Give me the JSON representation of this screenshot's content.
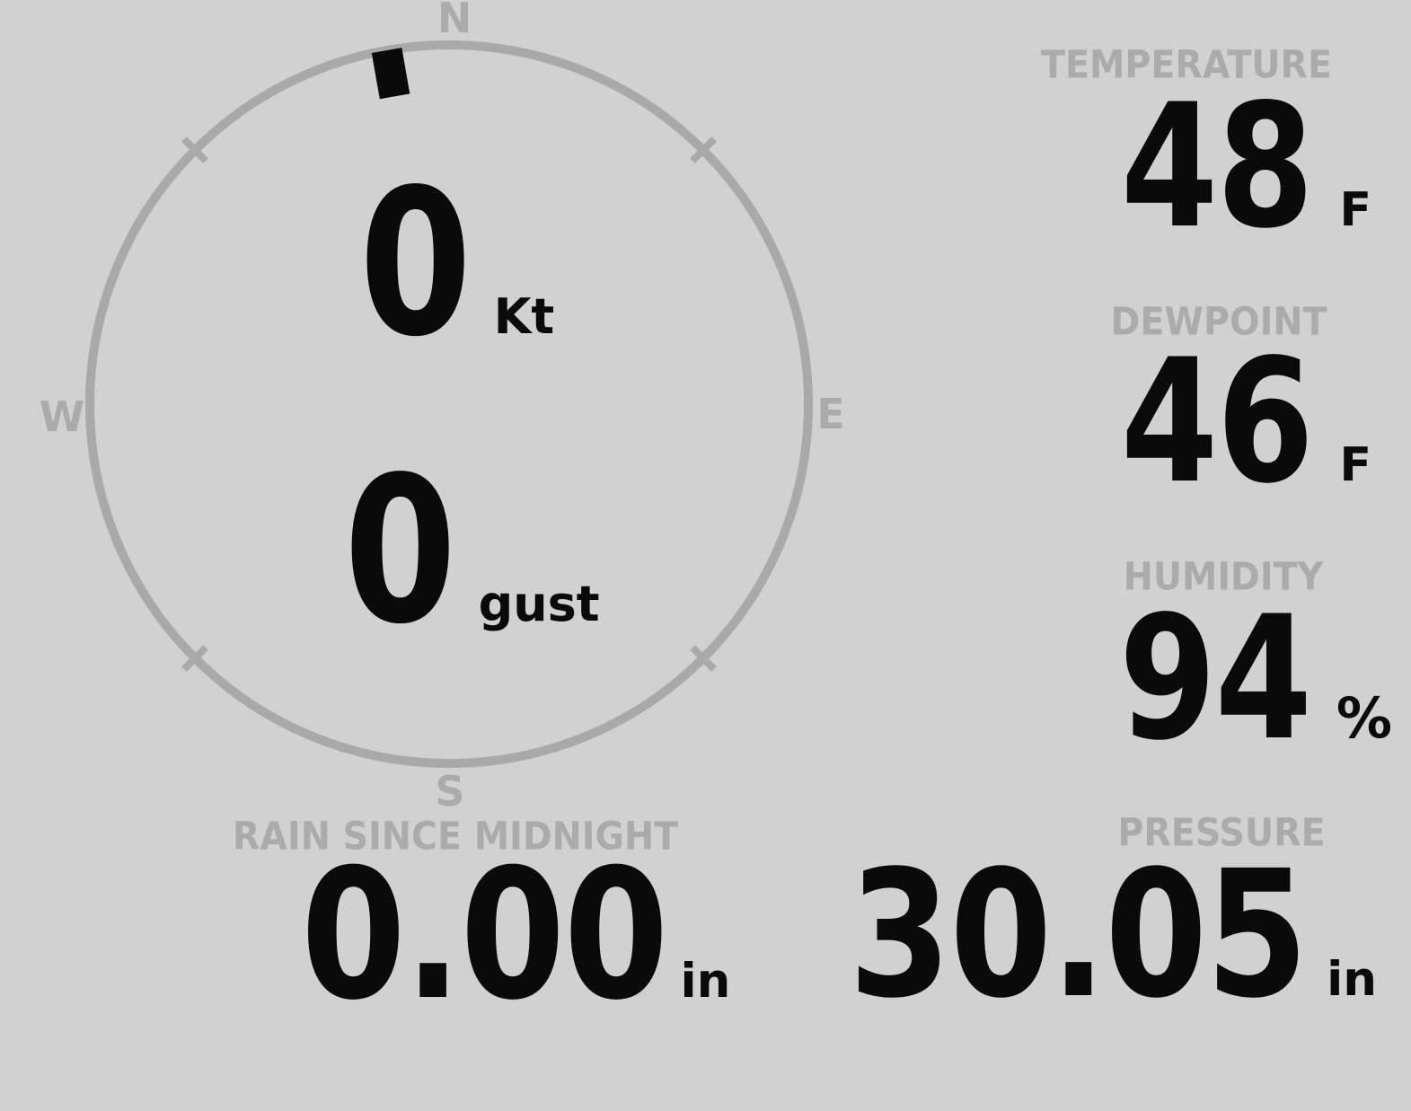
{
  "theme": {
    "background": "#d1d1d1",
    "dial_color": "#a9a9a9",
    "label_color": "#ababab",
    "value_color": "#0a0a0a"
  },
  "compass": {
    "cardinal": {
      "north": "N",
      "east": "E",
      "south": "S",
      "west": "W"
    },
    "wind_direction_deg": 350,
    "speed": {
      "value": "0",
      "unit": "Kt"
    },
    "gust": {
      "value": "0",
      "unit": "gust"
    }
  },
  "stats": {
    "temperature": {
      "label": "TEMPERATURE",
      "value": "48",
      "unit": "F"
    },
    "dewpoint": {
      "label": "DEWPOINT",
      "value": "46",
      "unit": "F"
    },
    "humidity": {
      "label": "HUMIDITY",
      "value": "94",
      "unit": "%"
    },
    "rain": {
      "label": "RAIN SINCE MIDNIGHT",
      "value": "0.00",
      "unit": "in"
    },
    "pressure": {
      "label": "PRESSURE",
      "value": "30.05",
      "unit": "in"
    }
  }
}
